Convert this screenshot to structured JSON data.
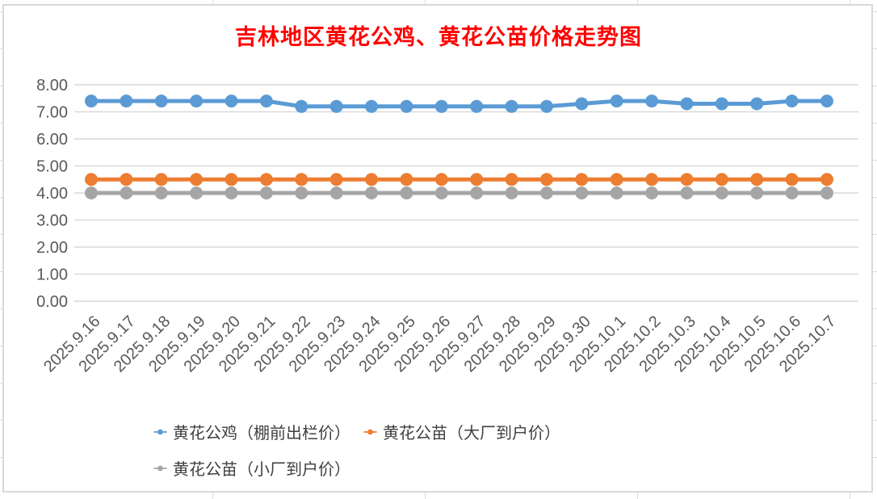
{
  "chart_data": {
    "type": "line",
    "title": "吉林地区黄花公鸡、黄花公苗价格走势图",
    "title_color": "#FF0000",
    "categories": [
      "2025.9.16",
      "2025.9.17",
      "2025.9.18",
      "2025.9.19",
      "2025.9.20",
      "2025.9.21",
      "2025.9.22",
      "2025.9.23",
      "2025.9.24",
      "2025.9.25",
      "2025.9.26",
      "2025.9.27",
      "2025.9.28",
      "2025.9.29",
      "2025.9.30",
      "2025.10.1",
      "2025.10.2",
      "2025.10.3",
      "2025.10.4",
      "2025.10.5",
      "2025.10.6",
      "2025.10.7"
    ],
    "series": [
      {
        "name": "黄花公鸡（棚前出栏价）",
        "color": "#5B9BD5",
        "values": [
          7.4,
          7.4,
          7.4,
          7.4,
          7.4,
          7.4,
          7.2,
          7.2,
          7.2,
          7.2,
          7.2,
          7.2,
          7.2,
          7.2,
          7.3,
          7.4,
          7.4,
          7.3,
          7.3,
          7.3,
          7.4,
          7.4
        ]
      },
      {
        "name": "黄花公苗（大厂到户价）",
        "color": "#ED7D31",
        "values": [
          4.5,
          4.5,
          4.5,
          4.5,
          4.5,
          4.5,
          4.5,
          4.5,
          4.5,
          4.5,
          4.5,
          4.5,
          4.5,
          4.5,
          4.5,
          4.5,
          4.5,
          4.5,
          4.5,
          4.5,
          4.5,
          4.5
        ]
      },
      {
        "name": "黄花公苗（小厂到户价）",
        "color": "#A5A5A5",
        "values": [
          4.0,
          4.0,
          4.0,
          4.0,
          4.0,
          4.0,
          4.0,
          4.0,
          4.0,
          4.0,
          4.0,
          4.0,
          4.0,
          4.0,
          4.0,
          4.0,
          4.0,
          4.0,
          4.0,
          4.0,
          4.0,
          4.0
        ]
      }
    ],
    "ylim": [
      0,
      8
    ],
    "yticks": [
      "0.00",
      "1.00",
      "2.00",
      "3.00",
      "4.00",
      "5.00",
      "6.00",
      "7.00",
      "8.00"
    ],
    "grid": true,
    "gridline_color": "#D9D9D9",
    "axis_label_color": "#595959",
    "legend_position": "bottom",
    "legend_text_color": "#404040"
  }
}
